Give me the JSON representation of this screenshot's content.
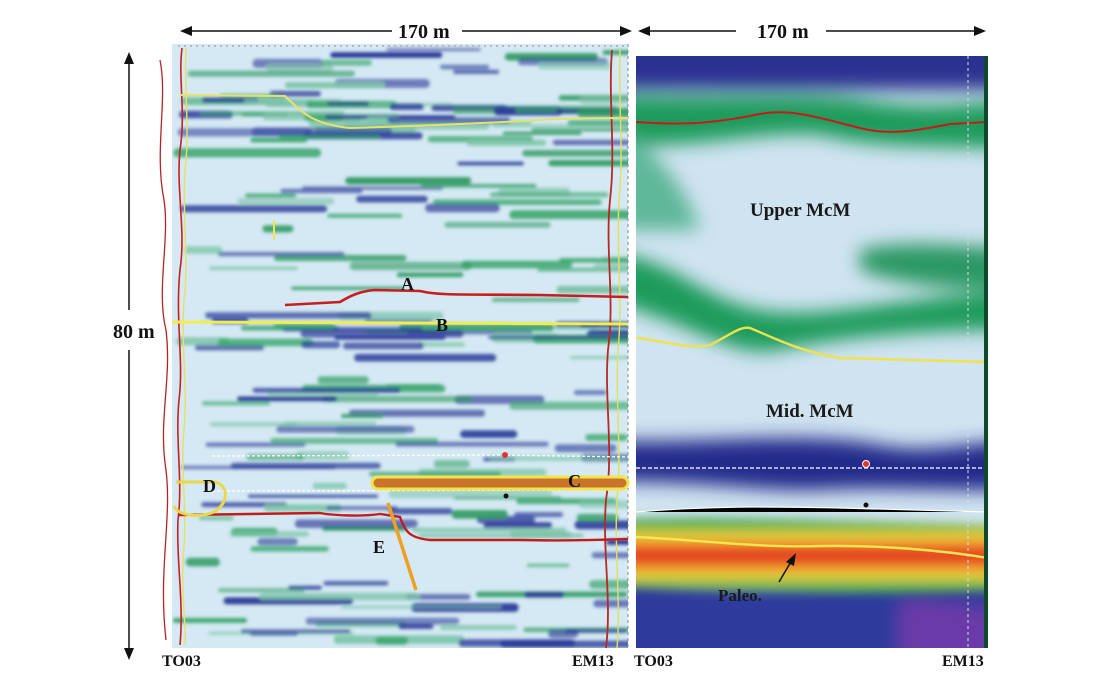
{
  "dimensions": {
    "top_left_width": "170 m",
    "top_right_width": "170 m",
    "vertical_height": "80 m"
  },
  "left_panel": {
    "left_well": "TO03",
    "right_well": "EM13",
    "horizons": [
      "A",
      "B",
      "C",
      "D",
      "E"
    ]
  },
  "right_panel": {
    "left_well": "TO03",
    "right_well": "EM13",
    "units": [
      "Upper McM",
      "Mid. McM",
      "Paleo."
    ]
  },
  "colors": {
    "background_light": "#cfe6f2",
    "blue_band": "#2a2f8f",
    "green_band": "#2e9f63",
    "red_horizon": "#c0181a",
    "yellow_horizon": "#f1e84a",
    "orange_marker": "#f0a020"
  }
}
